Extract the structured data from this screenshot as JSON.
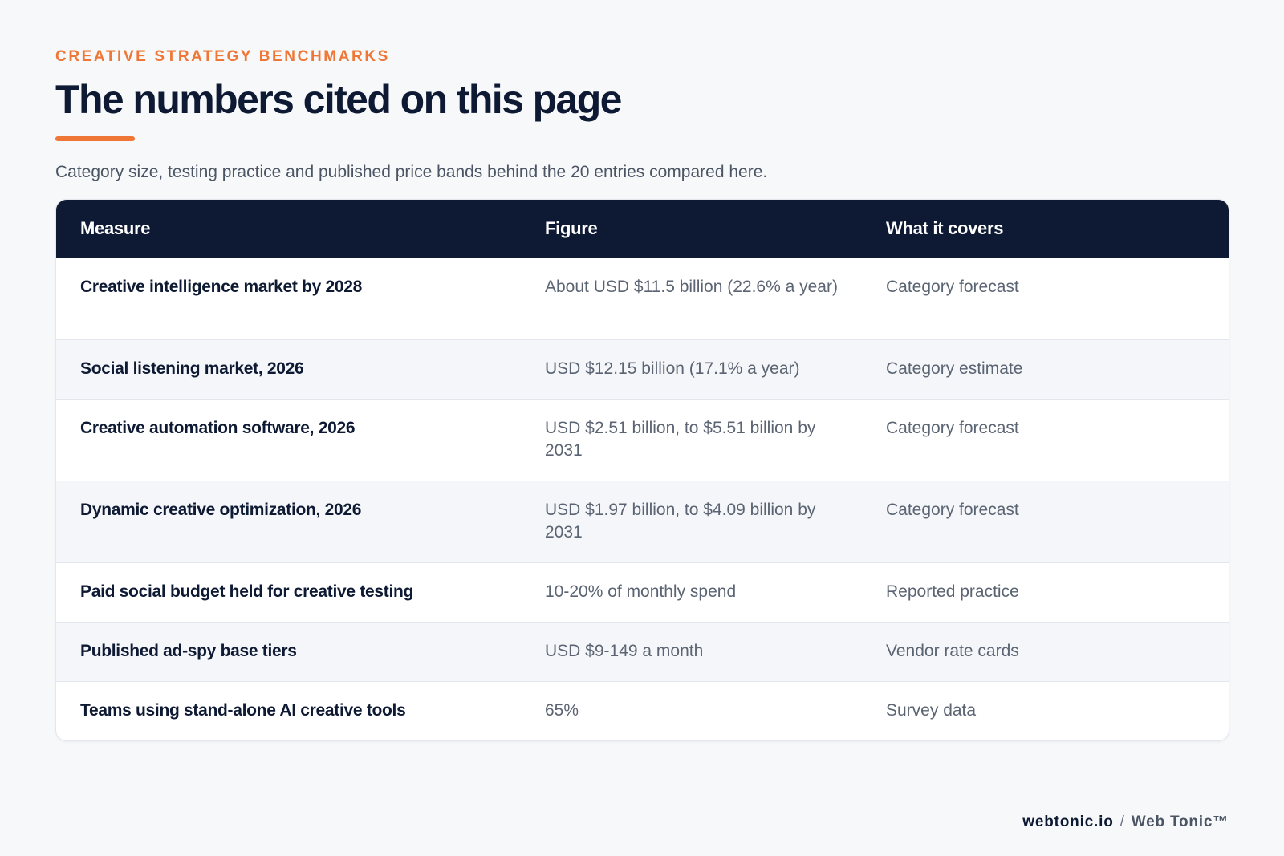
{
  "header": {
    "eyebrow": "CREATIVE STRATEGY BENCHMARKS",
    "title": "The numbers cited on this page",
    "subtitle": "Category size, testing practice and published price bands behind the 20 entries compared here."
  },
  "table": {
    "columns": [
      "Measure",
      "Figure",
      "What it covers"
    ],
    "rows": [
      {
        "measure": "Creative intelligence market by 2028",
        "figure": "About USD $11.5 billion (22.6% a year)",
        "covers": "Category forecast"
      },
      {
        "measure": "Social listening market, 2026",
        "figure": "USD $12.15 billion (17.1% a year)",
        "covers": "Category estimate"
      },
      {
        "measure": "Creative automation software, 2026",
        "figure": "USD $2.51 billion, to $5.51 billion by 2031",
        "covers": "Category forecast"
      },
      {
        "measure": "Dynamic creative optimization, 2026",
        "figure": "USD $1.97 billion, to $4.09 billion by 2031",
        "covers": "Category forecast"
      },
      {
        "measure": "Paid social budget held for creative testing",
        "figure": "10-20% of monthly spend",
        "covers": "Reported practice"
      },
      {
        "measure": "Published ad-spy base tiers",
        "figure": "USD $9-149 a month",
        "covers": "Vendor rate cards"
      },
      {
        "measure": "Teams using stand-alone AI creative tools",
        "figure": "65%",
        "covers": "Survey data"
      }
    ]
  },
  "footer": {
    "domain": "webtonic.io",
    "separator": "/",
    "brand": "Web Tonic™"
  },
  "colors": {
    "accent": "#ef7634",
    "navy": "#0e1a33",
    "background": "#f6f8fa"
  }
}
